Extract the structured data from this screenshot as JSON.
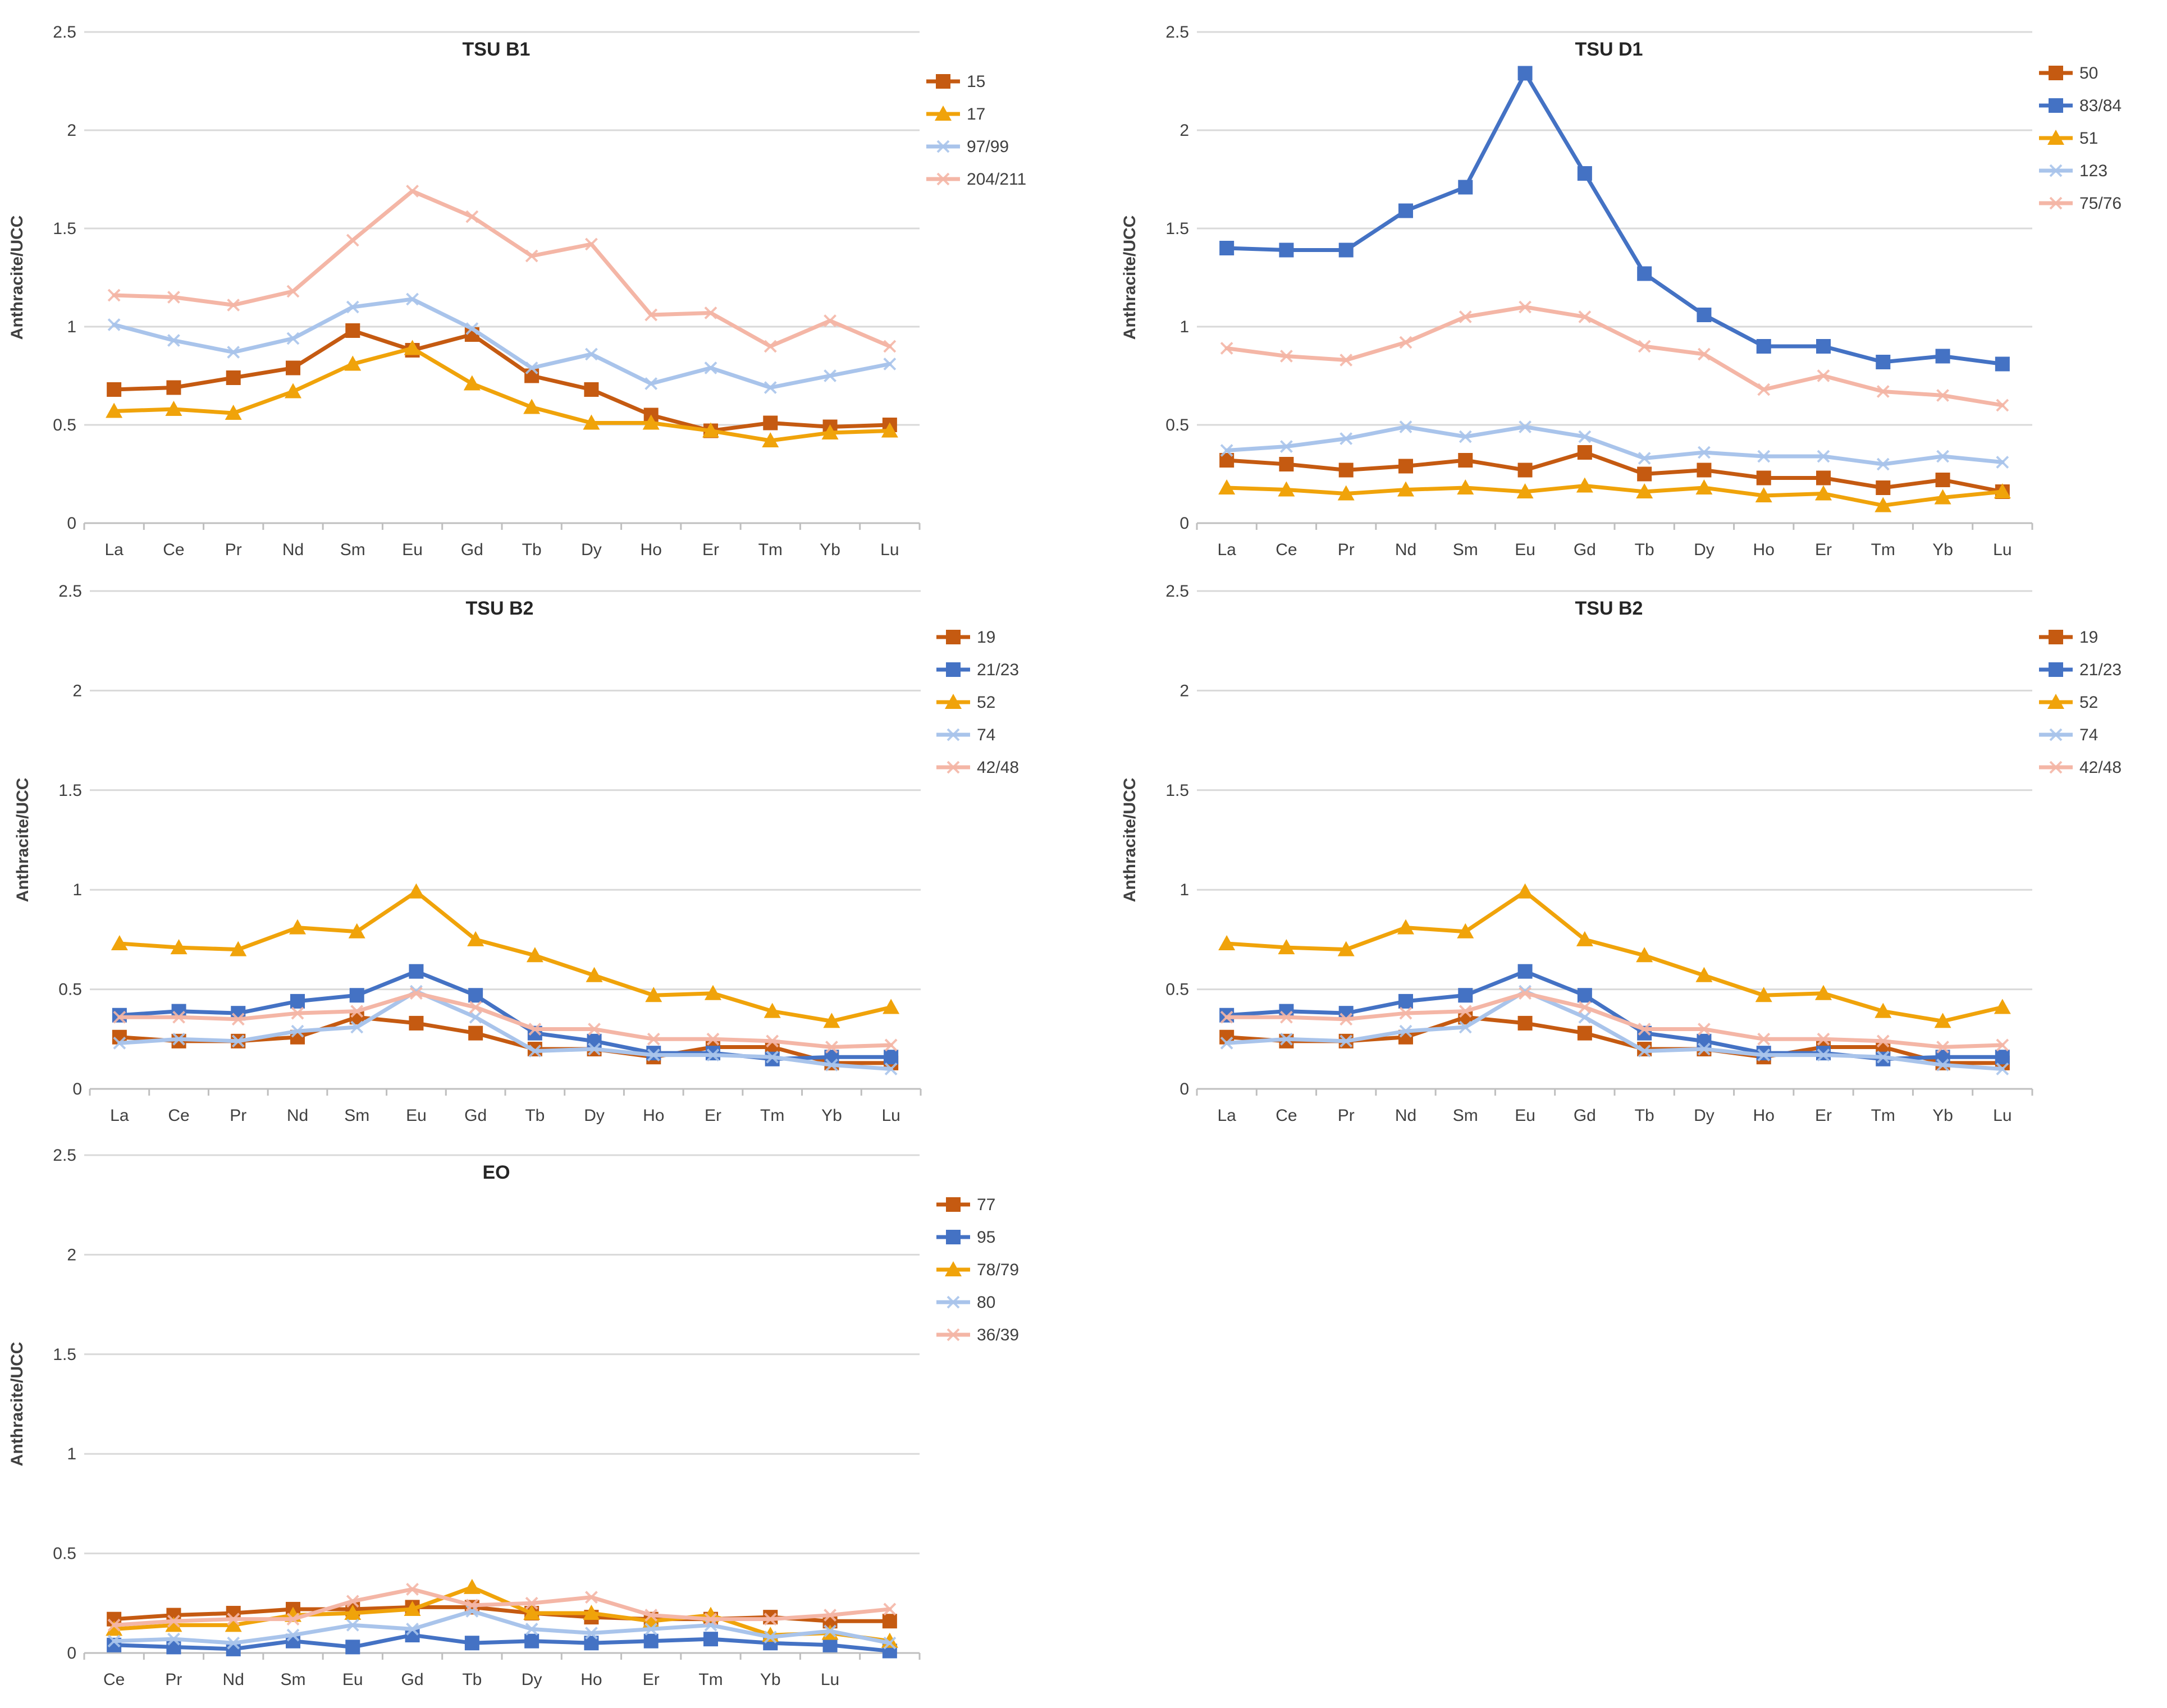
{
  "figure": {
    "panel_ids": [
      "tsu-b1",
      "tsu-d1",
      "tsu-b2-left",
      "tsu-b2-right",
      "eo"
    ]
  },
  "chart_data": [
    {
      "id": "tsu-b1",
      "type": "line",
      "title": "TSU B1",
      "xlabel": "",
      "ylabel": "Anthracite/UCC",
      "ylim": [
        0,
        2.5
      ],
      "yticks": [
        "0",
        "0.5",
        "1",
        "1.5",
        "2",
        "2.5"
      ],
      "categories": [
        "La",
        "Ce",
        "Pr",
        "Nd",
        "Sm",
        "Eu",
        "Gd",
        "Tb",
        "Dy",
        "Ho",
        "Er",
        "Tm",
        "Yb",
        "Lu"
      ],
      "grid": true,
      "legend_position": "right",
      "series": [
        {
          "name": "15",
          "color": "#C55A11",
          "marker": "square",
          "values": [
            0.68,
            0.69,
            0.74,
            0.79,
            0.98,
            0.88,
            0.96,
            0.75,
            0.68,
            0.55,
            0.47,
            0.51,
            0.49,
            0.5
          ]
        },
        {
          "name": "17",
          "color": "#F0A30A",
          "marker": "triangle",
          "values": [
            0.57,
            0.58,
            0.56,
            0.67,
            0.81,
            0.89,
            0.71,
            0.59,
            0.51,
            0.51,
            0.47,
            0.42,
            0.46,
            0.47
          ]
        },
        {
          "name": "97/99",
          "color": "#A9C4EB",
          "marker": "cross",
          "values": [
            1.01,
            0.93,
            0.87,
            0.94,
            1.1,
            1.14,
            0.99,
            0.79,
            0.86,
            0.71,
            0.79,
            0.69,
            0.75,
            0.81
          ]
        },
        {
          "name": "204/211",
          "color": "#F4B6A6",
          "marker": "cross",
          "values": [
            1.16,
            1.15,
            1.11,
            1.18,
            1.44,
            1.69,
            1.56,
            1.36,
            1.42,
            1.06,
            1.07,
            0.9,
            1.03,
            0.9
          ]
        }
      ]
    },
    {
      "id": "tsu-d1",
      "type": "line",
      "title": "TSU D1",
      "xlabel": "",
      "ylabel": "Anthracite/UCC",
      "ylim": [
        0,
        2.5
      ],
      "yticks": [
        "0",
        "0.5",
        "1",
        "1.5",
        "2",
        "2.5"
      ],
      "categories": [
        "La",
        "Ce",
        "Pr",
        "Nd",
        "Sm",
        "Eu",
        "Gd",
        "Tb",
        "Dy",
        "Ho",
        "Er",
        "Tm",
        "Yb",
        "Lu"
      ],
      "grid": true,
      "legend_position": "right",
      "series": [
        {
          "name": "50",
          "color": "#C55A11",
          "marker": "square",
          "values": [
            0.32,
            0.3,
            0.27,
            0.29,
            0.32,
            0.27,
            0.36,
            0.25,
            0.27,
            0.23,
            0.23,
            0.18,
            0.22,
            0.16
          ]
        },
        {
          "name": "83/84",
          "color": "#4472C4",
          "marker": "square",
          "values": [
            1.4,
            1.39,
            1.39,
            1.59,
            1.71,
            2.29,
            1.78,
            1.27,
            1.06,
            0.9,
            0.9,
            0.82,
            0.85,
            0.81
          ]
        },
        {
          "name": "51",
          "color": "#F0A30A",
          "marker": "triangle",
          "values": [
            0.18,
            0.17,
            0.15,
            0.17,
            0.18,
            0.16,
            0.19,
            0.16,
            0.18,
            0.14,
            0.15,
            0.09,
            0.13,
            0.16
          ]
        },
        {
          "name": "123",
          "color": "#A9C4EB",
          "marker": "cross",
          "values": [
            0.37,
            0.39,
            0.43,
            0.49,
            0.44,
            0.49,
            0.44,
            0.33,
            0.36,
            0.34,
            0.34,
            0.3,
            0.34,
            0.31
          ]
        },
        {
          "name": "75/76",
          "color": "#F4B6A6",
          "marker": "cross",
          "values": [
            0.89,
            0.85,
            0.83,
            0.92,
            1.05,
            1.1,
            1.05,
            0.9,
            0.86,
            0.68,
            0.75,
            0.67,
            0.65,
            0.6
          ]
        }
      ]
    },
    {
      "id": "tsu-b2-left",
      "type": "line",
      "title": "TSU B2",
      "xlabel": "",
      "ylabel": "Anthracite/UCC",
      "ylim": [
        0,
        2.5
      ],
      "yticks": [
        "0",
        "0.5",
        "1",
        "1.5",
        "2",
        "2.5"
      ],
      "categories": [
        "La",
        "Ce",
        "Pr",
        "Nd",
        "Sm",
        "Eu",
        "Gd",
        "Tb",
        "Dy",
        "Ho",
        "Er",
        "Tm",
        "Yb",
        "Lu"
      ],
      "grid": true,
      "legend_position": "right",
      "series": [
        {
          "name": "19",
          "color": "#C55A11",
          "marker": "square",
          "values": [
            0.26,
            0.24,
            0.24,
            0.26,
            0.36,
            0.33,
            0.28,
            0.2,
            0.2,
            0.16,
            0.21,
            0.21,
            0.13,
            0.13
          ]
        },
        {
          "name": "21/23",
          "color": "#4472C4",
          "marker": "square",
          "values": [
            0.37,
            0.39,
            0.38,
            0.44,
            0.47,
            0.59,
            0.47,
            0.28,
            0.24,
            0.18,
            0.18,
            0.15,
            0.16,
            0.16
          ]
        },
        {
          "name": "52",
          "color": "#F0A30A",
          "marker": "triangle",
          "values": [
            0.73,
            0.71,
            0.7,
            0.81,
            0.79,
            0.99,
            0.75,
            0.67,
            0.57,
            0.47,
            0.48,
            0.39,
            0.34,
            0.41
          ]
        },
        {
          "name": "74",
          "color": "#A9C4EB",
          "marker": "cross",
          "values": [
            0.23,
            0.25,
            0.24,
            0.29,
            0.31,
            0.49,
            0.36,
            0.19,
            0.2,
            0.17,
            0.17,
            0.16,
            0.12,
            0.1
          ]
        },
        {
          "name": "42/48",
          "color": "#F4B6A6",
          "marker": "cross",
          "values": [
            0.36,
            0.36,
            0.35,
            0.38,
            0.39,
            0.48,
            0.41,
            0.3,
            0.3,
            0.25,
            0.25,
            0.24,
            0.21,
            0.22
          ]
        }
      ]
    },
    {
      "id": "tsu-b2-right",
      "type": "line",
      "title": "TSU B2",
      "xlabel": "",
      "ylabel": "Anthracite/UCC",
      "ylim": [
        0,
        2.5
      ],
      "yticks": [
        "0",
        "0.5",
        "1",
        "1.5",
        "2",
        "2.5"
      ],
      "categories": [
        "La",
        "Ce",
        "Pr",
        "Nd",
        "Sm",
        "Eu",
        "Gd",
        "Tb",
        "Dy",
        "Ho",
        "Er",
        "Tm",
        "Yb",
        "Lu"
      ],
      "grid": true,
      "legend_position": "right",
      "series": [
        {
          "name": "19",
          "color": "#C55A11",
          "marker": "square",
          "values": [
            0.26,
            0.24,
            0.24,
            0.26,
            0.36,
            0.33,
            0.28,
            0.2,
            0.2,
            0.16,
            0.21,
            0.21,
            0.13,
            0.13
          ]
        },
        {
          "name": "21/23",
          "color": "#4472C4",
          "marker": "square",
          "values": [
            0.37,
            0.39,
            0.38,
            0.44,
            0.47,
            0.59,
            0.47,
            0.28,
            0.24,
            0.18,
            0.18,
            0.15,
            0.16,
            0.16
          ]
        },
        {
          "name": "52",
          "color": "#F0A30A",
          "marker": "triangle",
          "values": [
            0.73,
            0.71,
            0.7,
            0.81,
            0.79,
            0.99,
            0.75,
            0.67,
            0.57,
            0.47,
            0.48,
            0.39,
            0.34,
            0.41
          ]
        },
        {
          "name": "74",
          "color": "#A9C4EB",
          "marker": "cross",
          "values": [
            0.23,
            0.25,
            0.24,
            0.29,
            0.31,
            0.49,
            0.36,
            0.19,
            0.2,
            0.17,
            0.17,
            0.16,
            0.12,
            0.1
          ]
        },
        {
          "name": "42/48",
          "color": "#F4B6A6",
          "marker": "cross",
          "values": [
            0.36,
            0.36,
            0.35,
            0.38,
            0.39,
            0.48,
            0.41,
            0.3,
            0.3,
            0.25,
            0.25,
            0.24,
            0.21,
            0.22
          ]
        }
      ]
    },
    {
      "id": "eo",
      "type": "line",
      "title": "EO",
      "xlabel": "",
      "ylabel": "Anthracite/UCC",
      "ylim": [
        0,
        2.5
      ],
      "yticks": [
        "0",
        "0.5",
        "1",
        "1.5",
        "2",
        "2.5"
      ],
      "categories": [
        "Ce",
        "Pr",
        "Nd",
        "Sm",
        "Eu",
        "Gd",
        "Tb",
        "Dy",
        "Ho",
        "Er",
        "Tm",
        "Yb",
        "Lu",
        ""
      ],
      "grid": true,
      "legend_position": "right",
      "series": [
        {
          "name": "77",
          "color": "#C55A11",
          "marker": "square",
          "values": [
            0.17,
            0.19,
            0.2,
            0.22,
            0.22,
            0.23,
            0.23,
            0.2,
            0.18,
            0.17,
            0.17,
            0.18,
            0.16,
            0.16
          ]
        },
        {
          "name": "95",
          "color": "#4472C4",
          "marker": "square",
          "values": [
            0.04,
            0.03,
            0.02,
            0.06,
            0.03,
            0.09,
            0.05,
            0.06,
            0.05,
            0.06,
            0.07,
            0.05,
            0.04,
            0.01
          ]
        },
        {
          "name": "78/79",
          "color": "#F0A30A",
          "marker": "triangle",
          "values": [
            0.12,
            0.14,
            0.14,
            0.19,
            0.2,
            0.22,
            0.33,
            0.2,
            0.2,
            0.16,
            0.19,
            0.09,
            0.1,
            0.06
          ]
        },
        {
          "name": "80",
          "color": "#A9C4EB",
          "marker": "cross",
          "values": [
            0.06,
            0.07,
            0.05,
            0.09,
            0.14,
            0.12,
            0.21,
            0.12,
            0.1,
            0.12,
            0.14,
            0.08,
            0.11,
            0.05
          ]
        },
        {
          "name": "36/39",
          "color": "#F4B6A6",
          "marker": "cross",
          "values": [
            0.14,
            0.16,
            0.17,
            0.17,
            0.26,
            0.32,
            0.24,
            0.25,
            0.28,
            0.19,
            0.17,
            0.17,
            0.19,
            0.22
          ]
        }
      ]
    }
  ]
}
